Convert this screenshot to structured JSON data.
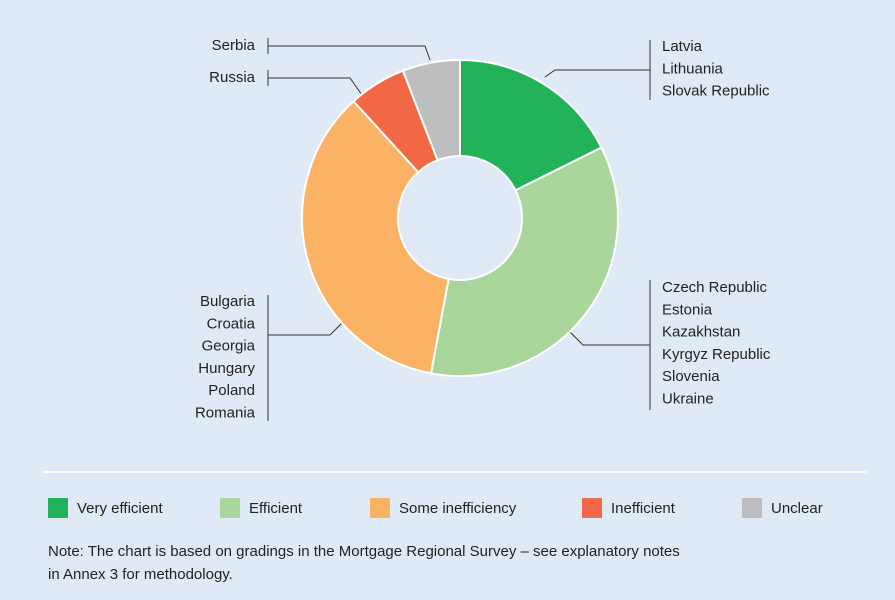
{
  "chart_data": {
    "type": "donut",
    "categories": [
      "Very efficient",
      "Efficient",
      "Some inefficiency",
      "Inefficient",
      "Unclear"
    ],
    "values": [
      3,
      6,
      6,
      1,
      1
    ],
    "colors": [
      "#22b35a",
      "#a8d69b",
      "#fbb264",
      "#f26846",
      "#bcbec0"
    ],
    "countries": [
      [
        "Latvia",
        "Lithuania",
        "Slovak Republic"
      ],
      [
        "Czech Republic",
        "Estonia",
        "Kazakhstan",
        "Kyrgyz Republic",
        "Slovenia",
        "Ukraine"
      ],
      [
        "Bulgaria",
        "Croatia",
        "Georgia",
        "Hungary",
        "Poland",
        "Romania"
      ],
      [
        "Russia"
      ],
      [
        "Serbia"
      ]
    ],
    "legend": "bottom"
  },
  "note": [
    "Note: The chart is based on gradings in the Mortgage Regional Survey – see explanatory notes",
    "in Annex 3 for methodology."
  ]
}
